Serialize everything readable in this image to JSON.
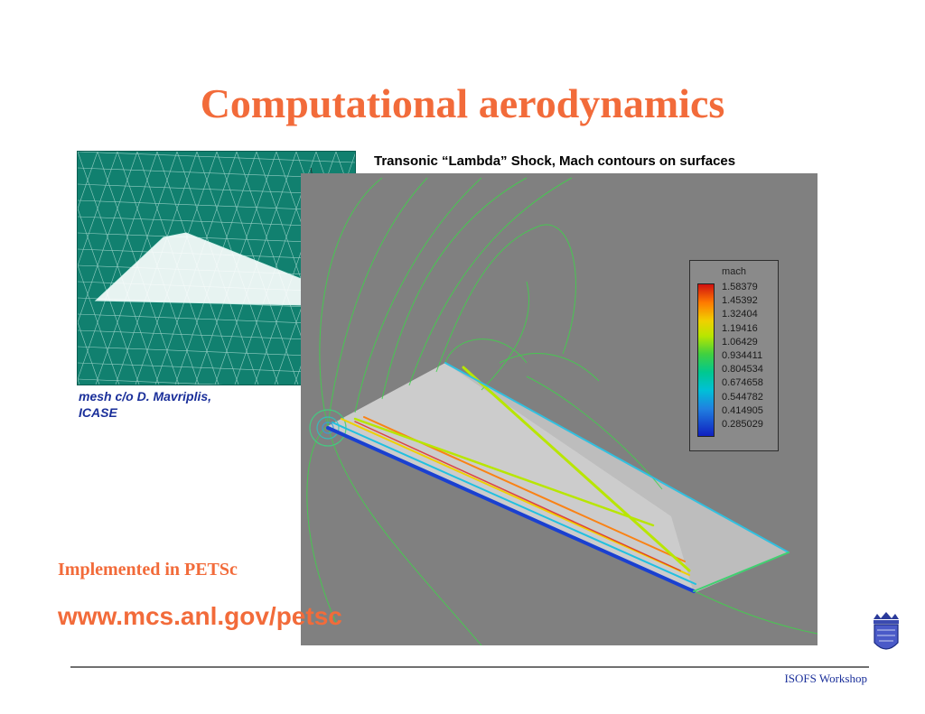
{
  "slide": {
    "title": "Computational aerodynamics",
    "mesh_credit_line1": "mesh c/o D. Mavriplis,",
    "mesh_credit_line2": "ICASE",
    "plot_caption": "Transonic “Lambda” Shock, Mach contours on surfaces",
    "implemented_text": "Implemented in PETSc",
    "url_text": "www.mcs.anl.gov/petsc",
    "footer_text": "ISOFS Workshop"
  },
  "legend": {
    "title": "mach",
    "values": [
      "1.58379",
      "1.45392",
      "1.32404",
      "1.19416",
      "1.06429",
      "0.934411",
      "0.804534",
      "0.674658",
      "0.544782",
      "0.414905",
      "0.285029"
    ]
  },
  "colors": {
    "title": "#f26b3a",
    "credit": "#1a2f9a",
    "mesh_background": "#11806f",
    "plot_background": "#808080"
  }
}
